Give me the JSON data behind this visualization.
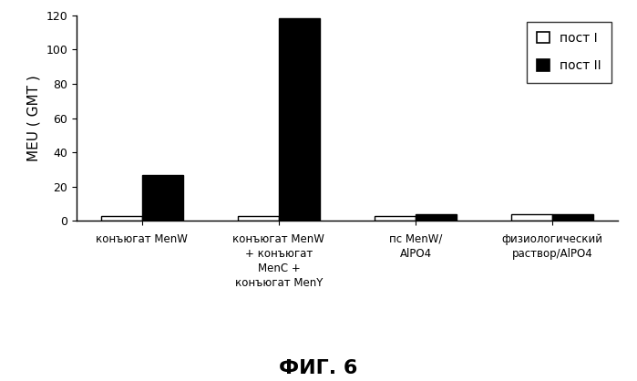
{
  "categories": [
    "конъюгат MenW",
    "конъюгат MenW\n+ конъюгат\nMenC +\nконъюгат MenY",
    "пс MenW/\nAlPO4",
    "физиологический\nраствор/AlPO4"
  ],
  "post1_values": [
    3.0,
    3.0,
    3.0,
    4.0
  ],
  "post2_values": [
    27.0,
    118.0,
    4.0,
    4.0
  ],
  "bar_width": 0.3,
  "ylim": [
    0,
    120
  ],
  "yticks": [
    0,
    20,
    40,
    60,
    80,
    100,
    120
  ],
  "ylabel": "MEU ( GMT )",
  "title": "ФИГ. 6",
  "legend_labels": [
    "пост I",
    "пост II"
  ],
  "color_post1": "#ffffff",
  "color_post2": "#000000",
  "edge_color": "#000000",
  "background_color": "#ffffff",
  "title_fontsize": 16,
  "ylabel_fontsize": 11,
  "tick_fontsize": 9,
  "legend_fontsize": 10,
  "xtick_fontsize": 8.5
}
